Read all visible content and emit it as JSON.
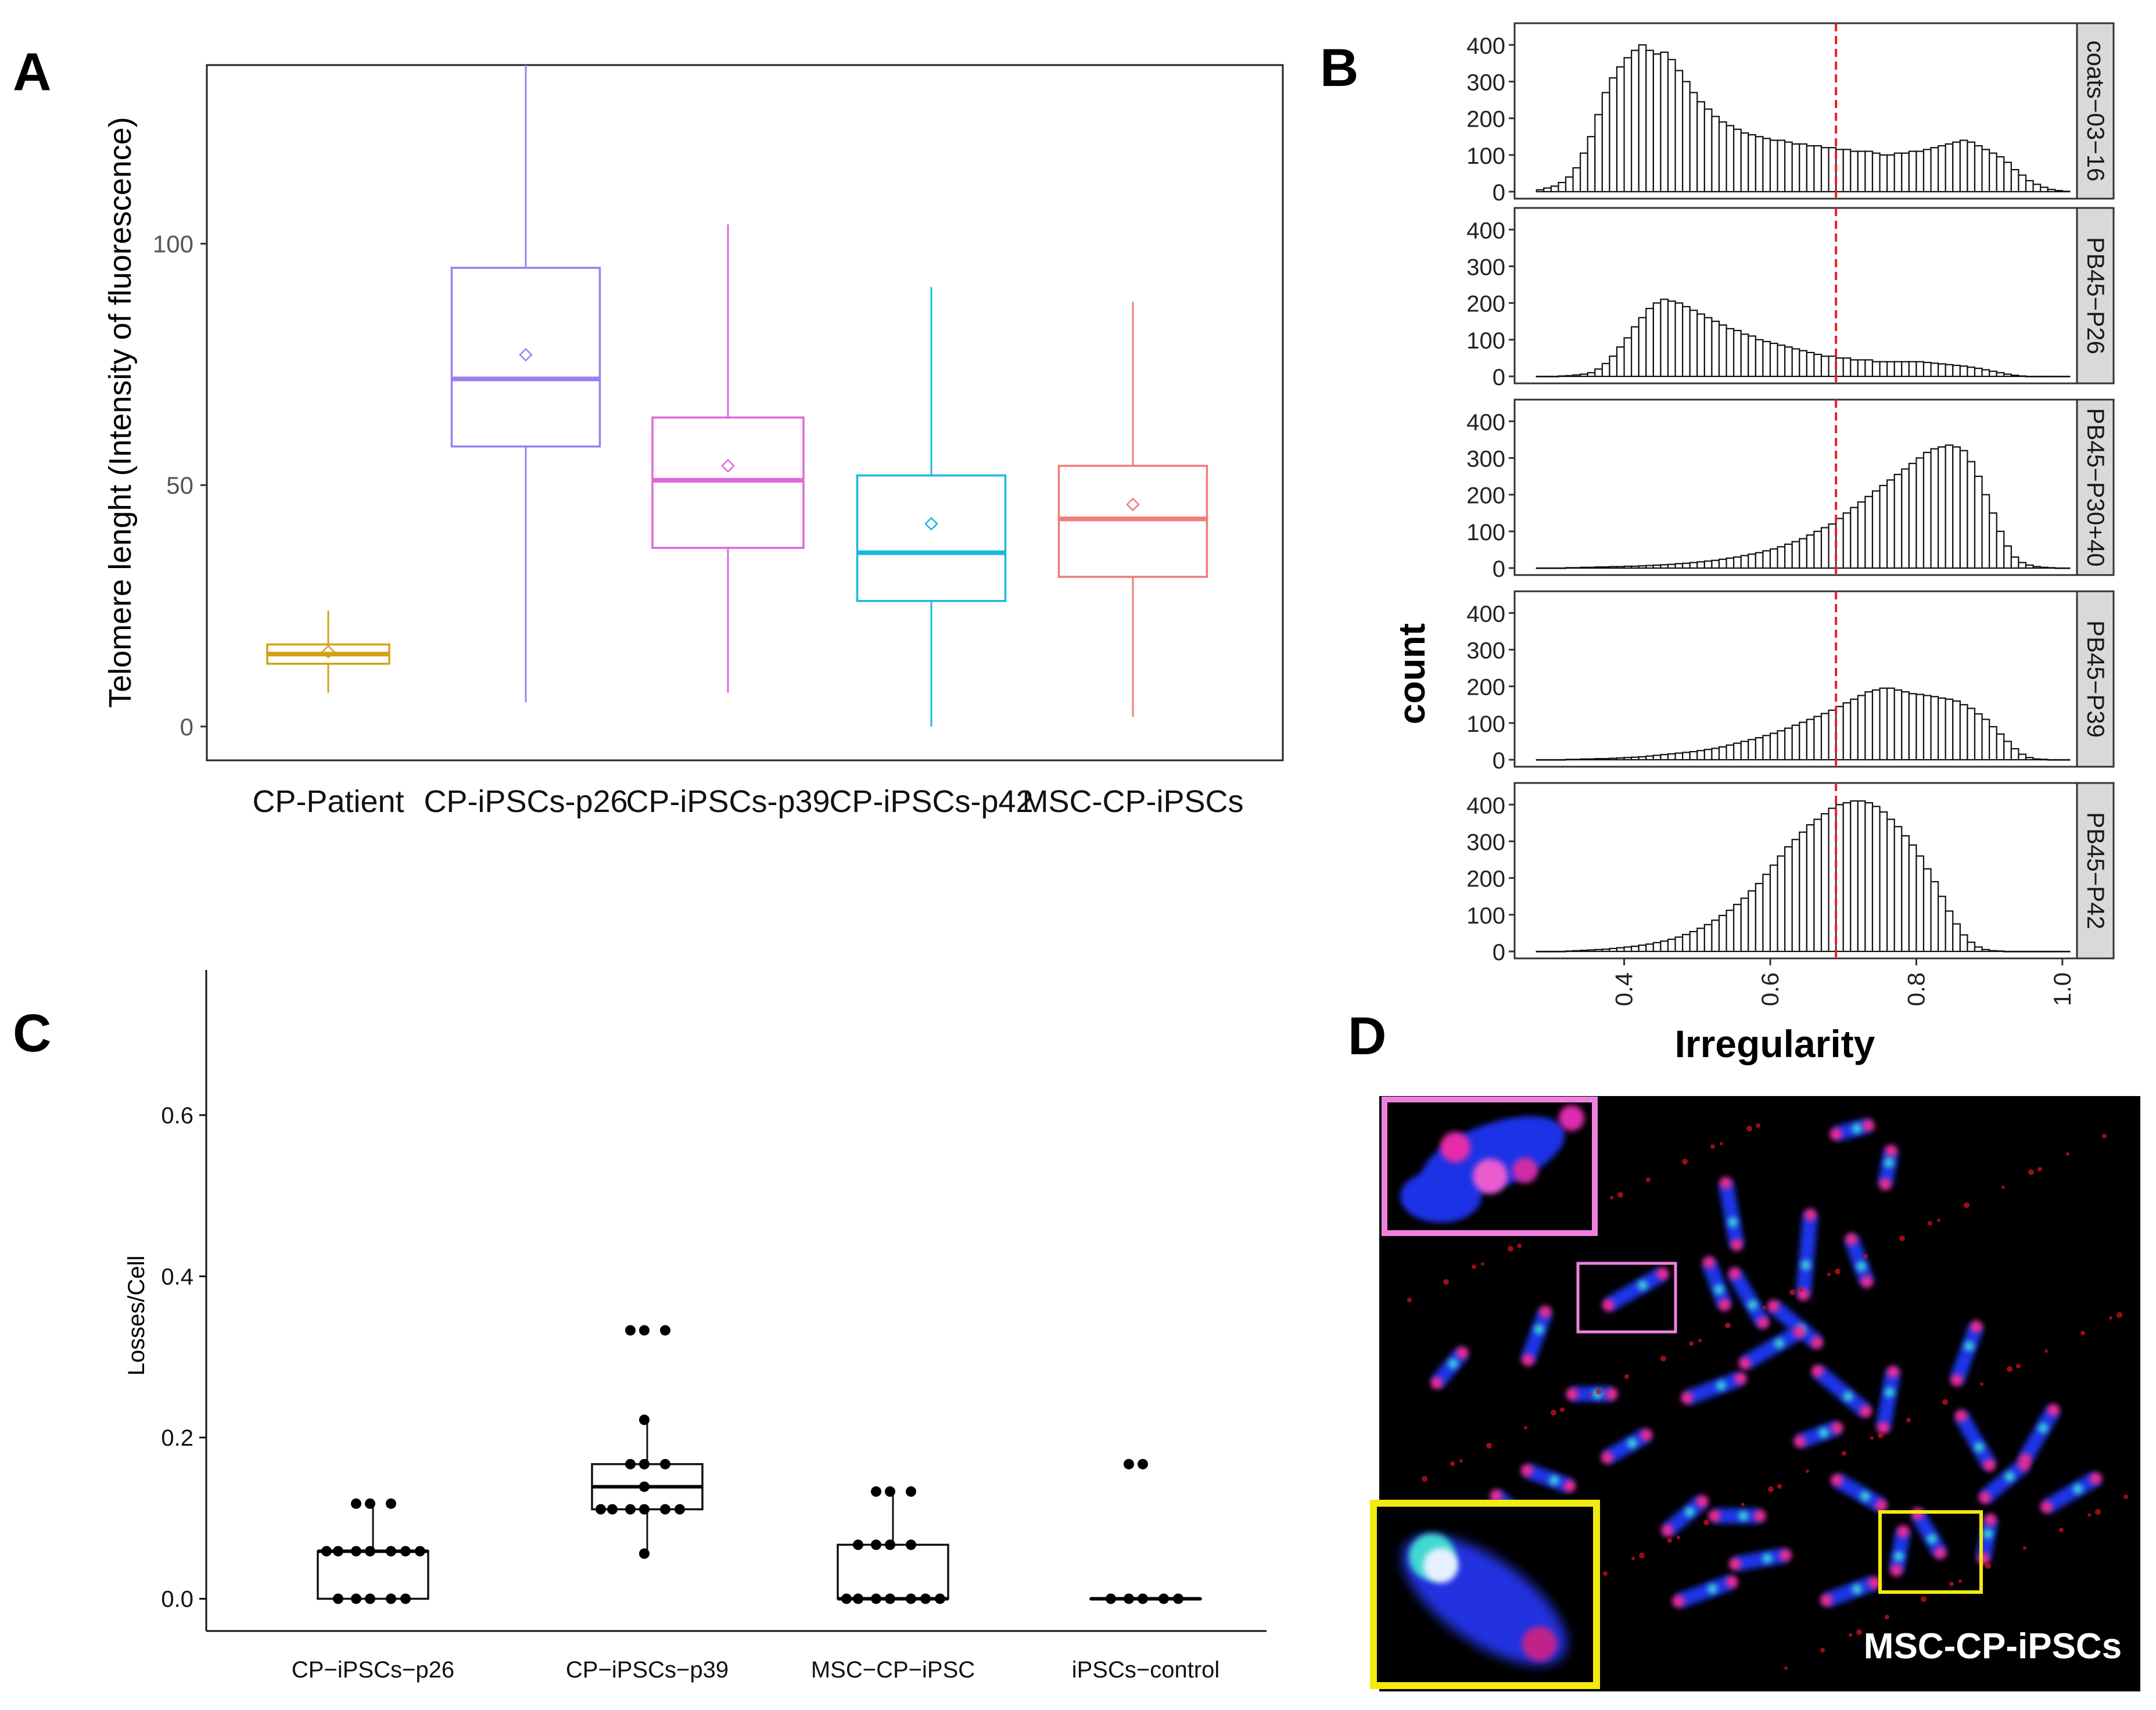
{
  "panel_labels": {
    "a": "A",
    "b": "B",
    "c": "C",
    "d": "D"
  },
  "chart_data": [
    {
      "panel": "A",
      "type": "box",
      "title": "",
      "xlabel": "",
      "ylabel": "Telomere lenght (Intensity of fluorescence)",
      "ylim": [
        -7,
        137
      ],
      "yticks": [
        0,
        50,
        100
      ],
      "grid": false,
      "groups": [
        {
          "name": "CP-Patient",
          "color": "#D4A017",
          "whisker_low": 7,
          "q1": 13,
          "median": 15,
          "q3": 17,
          "whisker_high": 24,
          "mean": 15.5
        },
        {
          "name": "CP-iPSCs-p26",
          "color": "#9B7FF0",
          "whisker_low": 5,
          "q1": 58,
          "median": 72,
          "q3": 95,
          "whisker_high": 137,
          "mean": 77
        },
        {
          "name": "CP-iPSCs-p39",
          "color": "#E066D9",
          "whisker_low": 7,
          "q1": 37,
          "median": 51,
          "q3": 64,
          "whisker_high": 104,
          "mean": 54
        },
        {
          "name": "CP-iPSCs-p42",
          "color": "#19B9E0",
          "whisker_low": 0,
          "q1": 26,
          "median": 36,
          "q3": 52,
          "whisker_high": 91,
          "mean": 42
        },
        {
          "name": "MSC-CP-iPSCs",
          "color": "#F07C78",
          "whisker_low": 2,
          "q1": 31,
          "median": 43,
          "q3": 54,
          "whisker_high": 88,
          "mean": 46
        }
      ]
    },
    {
      "panel": "B",
      "type": "histogram",
      "xlabel": "Irregularity",
      "ylabel": "count",
      "xlim": [
        0.25,
        1.02
      ],
      "ylim": [
        0,
        440
      ],
      "xticks": [
        0.4,
        0.6,
        0.8,
        1.0
      ],
      "xtick_labels": [
        "0.4",
        "0.6",
        "0.8",
        "1.0"
      ],
      "yticks": [
        0,
        100,
        200,
        300,
        400
      ],
      "threshold_line": 0.69,
      "bin_start": 0.28,
      "bin_width": 0.01,
      "facets": [
        {
          "label": "coats−03−16",
          "counts": [
            5,
            10,
            15,
            25,
            40,
            65,
            105,
            150,
            210,
            270,
            310,
            340,
            365,
            385,
            400,
            385,
            375,
            380,
            360,
            330,
            300,
            270,
            245,
            225,
            205,
            190,
            180,
            170,
            160,
            155,
            150,
            145,
            140,
            140,
            135,
            130,
            130,
            125,
            125,
            120,
            120,
            115,
            115,
            110,
            110,
            110,
            105,
            100,
            100,
            105,
            105,
            110,
            110,
            115,
            120,
            125,
            130,
            135,
            140,
            135,
            125,
            115,
            105,
            95,
            80,
            60,
            45,
            30,
            20,
            12,
            6,
            3,
            1
          ]
        },
        {
          "label": "PB45−P26",
          "counts": [
            0,
            0,
            0,
            1,
            2,
            4,
            6,
            10,
            20,
            35,
            55,
            80,
            105,
            135,
            160,
            185,
            200,
            210,
            205,
            200,
            190,
            180,
            170,
            160,
            150,
            140,
            130,
            125,
            115,
            110,
            100,
            95,
            90,
            85,
            80,
            75,
            70,
            65,
            60,
            55,
            55,
            50,
            50,
            45,
            45,
            45,
            40,
            40,
            40,
            40,
            40,
            40,
            40,
            38,
            36,
            34,
            32,
            30,
            28,
            25,
            22,
            18,
            14,
            10,
            6,
            3,
            1,
            0,
            0,
            0,
            0,
            0,
            0
          ]
        },
        {
          "label": "PB45−P30+40",
          "counts": [
            0,
            0,
            0,
            0,
            1,
            1,
            2,
            2,
            3,
            3,
            4,
            4,
            5,
            5,
            6,
            7,
            8,
            9,
            10,
            12,
            13,
            15,
            17,
            19,
            21,
            24,
            27,
            30,
            34,
            38,
            42,
            47,
            52,
            58,
            65,
            72,
            80,
            90,
            100,
            110,
            120,
            135,
            150,
            165,
            180,
            195,
            210,
            225,
            240,
            255,
            270,
            285,
            300,
            315,
            325,
            330,
            335,
            330,
            320,
            290,
            250,
            200,
            150,
            100,
            60,
            30,
            15,
            8,
            4,
            2,
            1,
            0,
            0
          ]
        },
        {
          "label": "PB45−P39",
          "counts": [
            0,
            0,
            0,
            0,
            1,
            1,
            2,
            2,
            3,
            3,
            4,
            5,
            6,
            7,
            8,
            10,
            12,
            14,
            16,
            18,
            20,
            22,
            25,
            28,
            31,
            35,
            40,
            45,
            50,
            55,
            60,
            66,
            72,
            79,
            86,
            94,
            102,
            110,
            118,
            126,
            135,
            145,
            155,
            165,
            175,
            185,
            190,
            195,
            195,
            190,
            185,
            180,
            178,
            175,
            172,
            168,
            165,
            160,
            150,
            140,
            125,
            110,
            90,
            70,
            50,
            30,
            15,
            6,
            2,
            1,
            0,
            0,
            0
          ]
        },
        {
          "label": "PB45−P42",
          "counts": [
            0,
            0,
            0,
            0,
            1,
            2,
            3,
            4,
            5,
            6,
            8,
            10,
            12,
            14,
            17,
            20,
            24,
            28,
            33,
            39,
            46,
            54,
            63,
            73,
            85,
            98,
            112,
            128,
            145,
            165,
            185,
            210,
            235,
            260,
            285,
            305,
            325,
            345,
            360,
            375,
            390,
            400,
            405,
            410,
            410,
            405,
            395,
            380,
            360,
            340,
            315,
            290,
            260,
            225,
            190,
            150,
            110,
            75,
            45,
            25,
            12,
            5,
            2,
            1,
            0,
            0,
            0,
            0,
            0,
            0,
            0,
            0,
            0
          ]
        }
      ]
    },
    {
      "panel": "C",
      "type": "box",
      "xlabel": "",
      "ylabel": "Losses/Cell",
      "ylim": [
        -0.04,
        0.78
      ],
      "yticks": [
        0.0,
        0.2,
        0.4,
        0.6
      ],
      "ytick_labels": [
        "0.0",
        "0.2",
        "0.4",
        "0.6"
      ],
      "groups": [
        {
          "name": "CP−iPSCs−p26",
          "whisker_low": 0.0,
          "q1": 0.0,
          "median": 0.059,
          "q3": 0.059,
          "whisker_high": 0.118,
          "points": [
            0.118,
            0.118,
            0.118,
            0.059,
            0.059,
            0.059,
            0.059,
            0.059,
            0.059,
            0.059,
            0.0,
            0.0,
            0.0,
            0.0,
            0.0
          ]
        },
        {
          "name": "CP−iPSCs−p39",
          "whisker_low": 0.056,
          "q1": 0.111,
          "median": 0.139,
          "q3": 0.167,
          "whisker_high": 0.222,
          "points": [
            0.333,
            0.333,
            0.333,
            0.222,
            0.167,
            0.167,
            0.167,
            0.139,
            0.111,
            0.111,
            0.111,
            0.111,
            0.111,
            0.111,
            0.056
          ]
        },
        {
          "name": "MSC−CP−iPSC",
          "whisker_low": 0.0,
          "q1": 0.0,
          "median": 0.0,
          "q3": 0.067,
          "whisker_high": 0.133,
          "points": [
            0.133,
            0.133,
            0.133,
            0.067,
            0.067,
            0.067,
            0.067,
            0.0,
            0.0,
            0.0,
            0.0,
            0.0,
            0.0,
            0.0
          ]
        },
        {
          "name": "iPSCs−control",
          "whisker_low": 0.0,
          "q1": 0.0,
          "median": 0.0,
          "q3": 0.0,
          "whisker_high": 0.0,
          "points": [
            0.167,
            0.167,
            0.0,
            0.0,
            0.0,
            0.0,
            0.0
          ]
        }
      ]
    }
  ],
  "micrograph": {
    "label": "MSC-CP-iPSCs",
    "frame_color_top": "#F080E0",
    "frame_color_bottom": "#F2EA10"
  }
}
